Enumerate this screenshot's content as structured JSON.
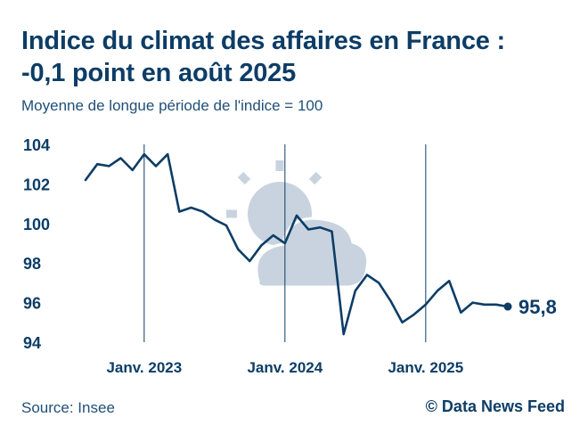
{
  "header": {
    "title_line1": "Indice du climat des affaires en France :",
    "title_line2": "-0,1 point en août 2025",
    "subtitle": "Moyenne de longue période de l'indice = 100"
  },
  "footer": {
    "source": "Source: Insee",
    "credit": "© Data News Feed"
  },
  "decoration": {
    "icon": "sun-behind-cloud-icon",
    "icon_color": "#c8d3df"
  },
  "colors": {
    "line": "#0d3d66",
    "text": "#0d3d66",
    "marker_lines": "#0d3d66"
  },
  "chart_data": {
    "type": "line",
    "title": "Indice du climat des affaires en France :  -0,1 point en août 2025",
    "subtitle": "Moyenne de longue période de l'indice = 100",
    "xlabel": "",
    "ylabel": "",
    "ylim": [
      94,
      104
    ],
    "y_ticks": [
      104,
      102,
      100,
      98,
      96,
      94
    ],
    "x_start": "2022-08",
    "x_end": "2025-08",
    "x_markers": [
      {
        "date": "2023-01",
        "label": "Janv. 2023"
      },
      {
        "date": "2024-01",
        "label": "Janv. 2024"
      },
      {
        "date": "2025-01",
        "label": "Janv. 2025"
      }
    ],
    "grid": false,
    "legend": "none",
    "series": [
      {
        "x": [
          "2022-08",
          "2022-09",
          "2022-10",
          "2022-11",
          "2022-12",
          "2023-01",
          "2023-02",
          "2023-03",
          "2023-04",
          "2023-05",
          "2023-06",
          "2023-07",
          "2023-08",
          "2023-09",
          "2023-10",
          "2023-11",
          "2023-12",
          "2024-01",
          "2024-02",
          "2024-03",
          "2024-04",
          "2024-05",
          "2024-06",
          "2024-07",
          "2024-08",
          "2024-09",
          "2024-10",
          "2024-11",
          "2024-12",
          "2025-01",
          "2025-02",
          "2025-03",
          "2025-04",
          "2025-05",
          "2025-06",
          "2025-07",
          "2025-08"
        ],
        "values": [
          102.2,
          103.0,
          102.9,
          103.3,
          102.7,
          103.5,
          102.9,
          103.5,
          100.6,
          100.8,
          100.6,
          100.2,
          99.9,
          98.7,
          98.1,
          98.9,
          99.4,
          99.0,
          100.4,
          99.7,
          99.8,
          99.6,
          94.4,
          96.6,
          97.4,
          97.0,
          96.1,
          95.0,
          95.4,
          95.9,
          96.6,
          97.1,
          95.5,
          96.0,
          95.9,
          95.9,
          95.8
        ]
      }
    ],
    "last_value_label": "95,8"
  }
}
